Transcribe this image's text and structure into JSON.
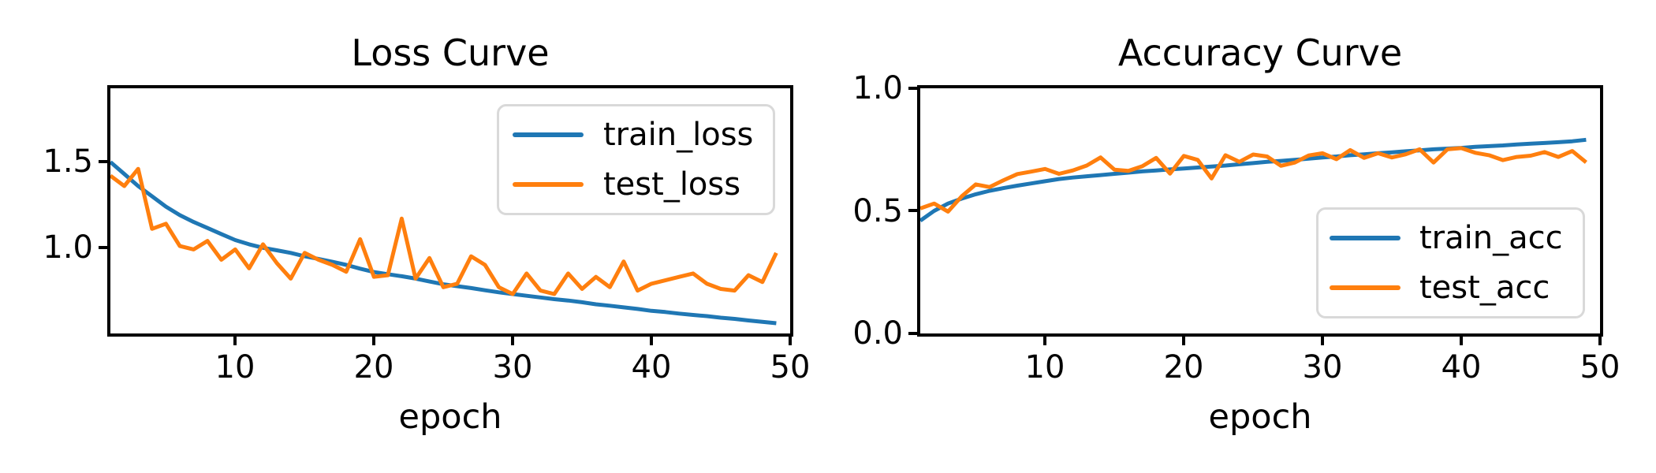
{
  "figure": {
    "background": "#ffffff",
    "spine_color": "#000000",
    "legend_border_color": "#d9d9d9"
  },
  "chart_data": [
    {
      "type": "line",
      "title": "Loss Curve",
      "xlabel": "epoch",
      "grid": false,
      "legend_position": "upper right",
      "xlim": [
        1,
        50
      ],
      "ylim": [
        0.5,
        1.93
      ],
      "xtick_values": [
        10,
        20,
        30,
        40,
        50
      ],
      "xtick_labels": [
        "10",
        "20",
        "30",
        "40",
        "50"
      ],
      "ytick_values": [
        1.5,
        1.0
      ],
      "ytick_labels": [
        "1.5",
        "1.0"
      ],
      "x": [
        1,
        2,
        3,
        4,
        5,
        6,
        7,
        8,
        9,
        10,
        11,
        12,
        13,
        14,
        15,
        16,
        17,
        18,
        19,
        20,
        21,
        22,
        23,
        24,
        25,
        26,
        27,
        28,
        29,
        30,
        31,
        32,
        33,
        34,
        35,
        36,
        37,
        38,
        39,
        40,
        41,
        42,
        43,
        44,
        45,
        46,
        47,
        48,
        49
      ],
      "series": [
        {
          "name": "train_loss",
          "color": "#1f77b4",
          "values": [
            1.5,
            1.43,
            1.36,
            1.3,
            1.24,
            1.19,
            1.15,
            1.115,
            1.08,
            1.045,
            1.02,
            1.0,
            0.985,
            0.97,
            0.95,
            0.935,
            0.918,
            0.9,
            0.878,
            0.858,
            0.846,
            0.834,
            0.82,
            0.803,
            0.787,
            0.776,
            0.765,
            0.752,
            0.74,
            0.73,
            0.72,
            0.71,
            0.7,
            0.692,
            0.682,
            0.67,
            0.662,
            0.652,
            0.643,
            0.632,
            0.625,
            0.616,
            0.608,
            0.601,
            0.592,
            0.585,
            0.576,
            0.568,
            0.56
          ]
        },
        {
          "name": "test_loss",
          "color": "#ff7f0e",
          "values": [
            1.42,
            1.36,
            1.46,
            1.11,
            1.14,
            1.01,
            0.99,
            1.04,
            0.93,
            0.99,
            0.88,
            1.02,
            0.91,
            0.82,
            0.97,
            0.93,
            0.9,
            0.86,
            1.05,
            0.83,
            0.84,
            1.17,
            0.82,
            0.94,
            0.77,
            0.79,
            0.95,
            0.9,
            0.77,
            0.73,
            0.85,
            0.75,
            0.73,
            0.85,
            0.76,
            0.83,
            0.77,
            0.92,
            0.75,
            0.79,
            0.81,
            0.83,
            0.85,
            0.79,
            0.76,
            0.75,
            0.84,
            0.8,
            0.97
          ]
        }
      ]
    },
    {
      "type": "line",
      "title": "Accuracy Curve",
      "xlabel": "epoch",
      "grid": false,
      "legend_position": "lower right",
      "xlim": [
        1,
        50
      ],
      "ylim": [
        0.0,
        1.0
      ],
      "xtick_values": [
        10,
        20,
        30,
        40,
        50
      ],
      "xtick_labels": [
        "10",
        "20",
        "30",
        "40",
        "50"
      ],
      "ytick_values": [
        1.0,
        0.5,
        0.0
      ],
      "ytick_labels": [
        "1.0",
        "0.5",
        "0.0"
      ],
      "x": [
        1,
        2,
        3,
        4,
        5,
        6,
        7,
        8,
        9,
        10,
        11,
        12,
        13,
        14,
        15,
        16,
        17,
        18,
        19,
        20,
        21,
        22,
        23,
        24,
        25,
        26,
        27,
        28,
        29,
        30,
        31,
        32,
        33,
        34,
        35,
        36,
        37,
        38,
        39,
        40,
        41,
        42,
        43,
        44,
        45,
        46,
        47,
        48,
        49
      ],
      "series": [
        {
          "name": "train_acc",
          "color": "#1f77b4",
          "values": [
            0.46,
            0.5,
            0.53,
            0.55,
            0.568,
            0.582,
            0.593,
            0.603,
            0.612,
            0.621,
            0.63,
            0.636,
            0.641,
            0.646,
            0.651,
            0.656,
            0.661,
            0.665,
            0.669,
            0.673,
            0.677,
            0.681,
            0.685,
            0.69,
            0.695,
            0.7,
            0.704,
            0.708,
            0.713,
            0.718,
            0.722,
            0.727,
            0.731,
            0.735,
            0.739,
            0.743,
            0.747,
            0.751,
            0.754,
            0.757,
            0.761,
            0.764,
            0.767,
            0.771,
            0.774,
            0.777,
            0.78,
            0.784,
            0.79
          ]
        },
        {
          "name": "test_acc",
          "color": "#ff7f0e",
          "values": [
            0.51,
            0.53,
            0.497,
            0.56,
            0.608,
            0.597,
            0.625,
            0.65,
            0.66,
            0.671,
            0.651,
            0.665,
            0.685,
            0.718,
            0.668,
            0.663,
            0.682,
            0.716,
            0.652,
            0.724,
            0.708,
            0.632,
            0.727,
            0.7,
            0.73,
            0.722,
            0.684,
            0.697,
            0.726,
            0.735,
            0.711,
            0.748,
            0.716,
            0.735,
            0.718,
            0.731,
            0.751,
            0.697,
            0.751,
            0.756,
            0.737,
            0.727,
            0.707,
            0.72,
            0.725,
            0.74,
            0.72,
            0.744,
            0.698
          ]
        }
      ]
    }
  ]
}
